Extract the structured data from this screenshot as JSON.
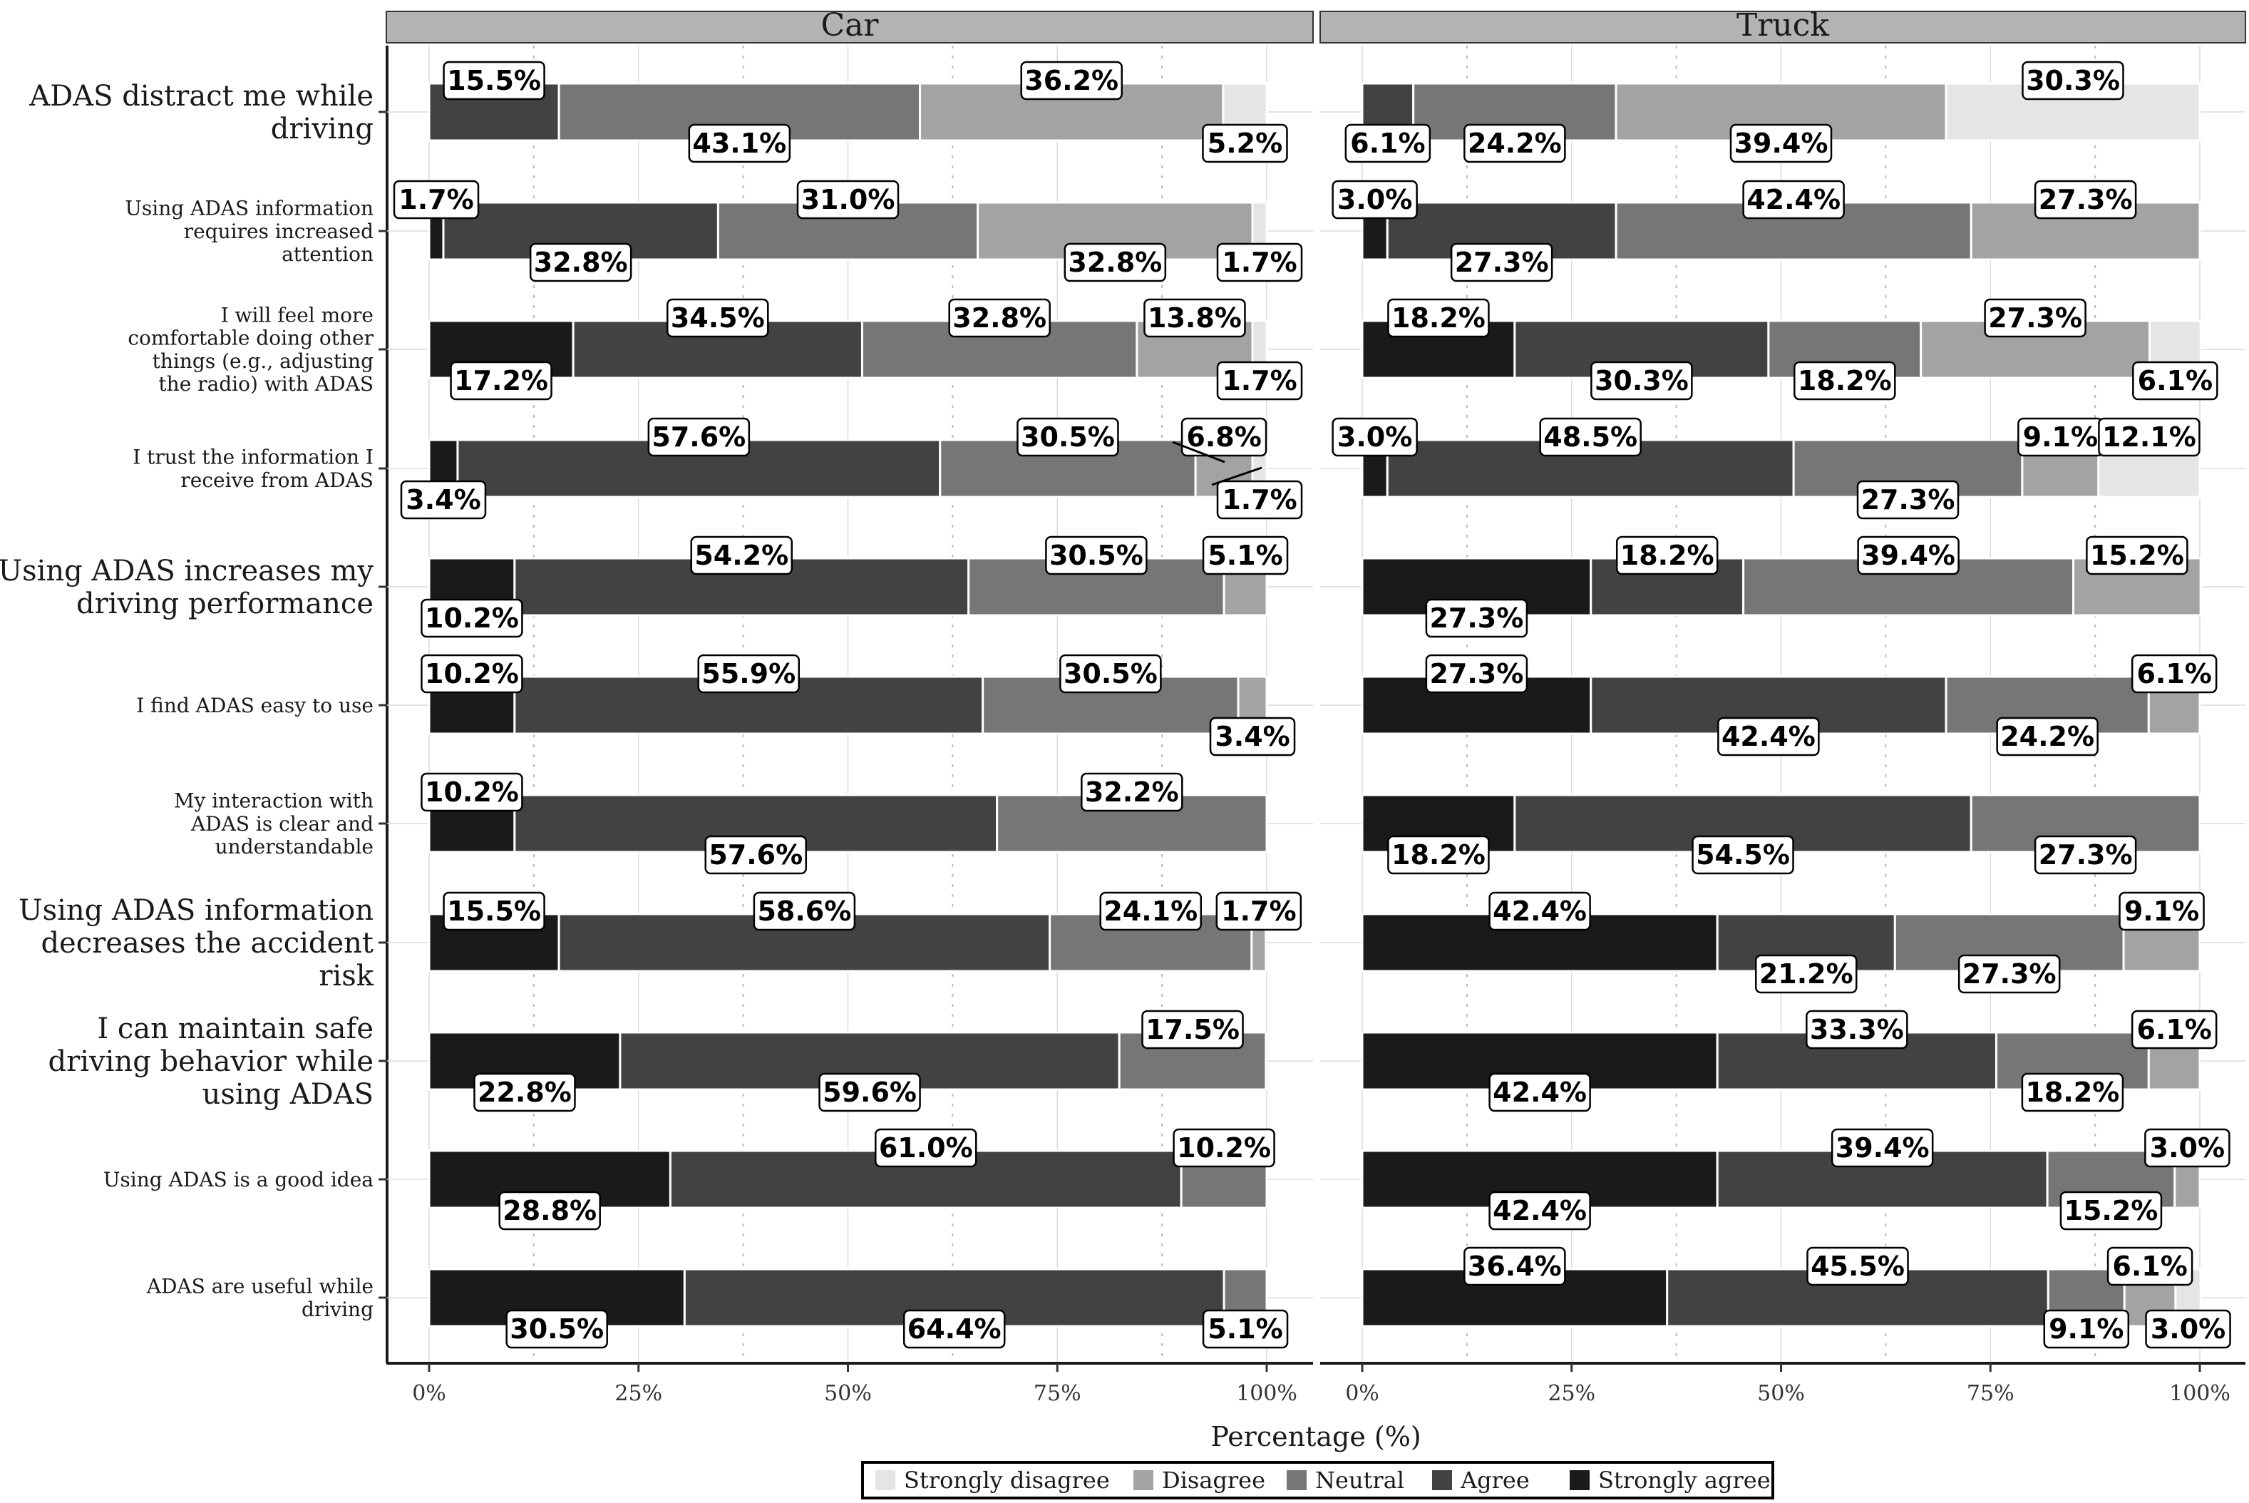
{
  "chart_data": {
    "type": "bar",
    "orientation": "horizontal-stacked",
    "xlabel": "Percentage (%)",
    "x_ticks": [
      "0%",
      "25%",
      "50%",
      "75%",
      "100%"
    ],
    "xlim": [
      0,
      100
    ],
    "levels": [
      "Strongly agree",
      "Agree",
      "Neutral",
      "Disagree",
      "Strongly disagree"
    ],
    "legend": {
      "position": "bottom",
      "entries": [
        {
          "label": "Strongly disagree",
          "color": "#e5e5e5"
        },
        {
          "label": "Disagree",
          "color": "#a3a3a3"
        },
        {
          "label": "Neutral",
          "color": "#767676"
        },
        {
          "label": "Agree",
          "color": "#424242"
        },
        {
          "label": "Strongly agree",
          "color": "#1a1a1a"
        }
      ]
    },
    "categories": [
      "ADAS distract me while driving",
      "Using ADAS information requires increased attention",
      "I will feel more comfortable doing other things (e.g., adjusting the radio) with ADAS",
      "I trust the information I receive from ADAS",
      "Using ADAS increases my driving performance",
      "I find ADAS easy to use",
      "My interaction with ADAS is clear and understandable",
      "Using ADAS information decreases the accident risk",
      "I can maintain safe driving behavior while using ADAS",
      "Using ADAS is a good idea",
      "ADAS are useful while driving"
    ],
    "panels": [
      {
        "name": "Car",
        "rows": [
          [
            0,
            15.5,
            43.1,
            36.2,
            5.2
          ],
          [
            1.7,
            32.8,
            31.0,
            32.8,
            1.7
          ],
          [
            17.2,
            34.5,
            32.8,
            13.8,
            1.7
          ],
          [
            3.4,
            57.6,
            30.5,
            6.8,
            1.7
          ],
          [
            10.2,
            54.2,
            30.5,
            5.1,
            0
          ],
          [
            10.2,
            55.9,
            30.5,
            3.4,
            0
          ],
          [
            10.2,
            57.6,
            32.2,
            0,
            0
          ],
          [
            15.5,
            58.6,
            24.1,
            1.7,
            0
          ],
          [
            22.8,
            59.6,
            17.5,
            0,
            0
          ],
          [
            28.8,
            61.0,
            10.2,
            0,
            0
          ],
          [
            30.5,
            64.4,
            5.1,
            0,
            0
          ]
        ]
      },
      {
        "name": "Truck",
        "rows": [
          [
            0,
            6.1,
            24.2,
            39.4,
            30.3
          ],
          [
            3.0,
            27.3,
            42.4,
            27.3,
            0
          ],
          [
            18.2,
            30.3,
            18.2,
            27.3,
            6.1
          ],
          [
            3.0,
            48.5,
            27.3,
            9.1,
            12.1
          ],
          [
            27.3,
            18.2,
            39.4,
            15.2,
            0
          ],
          [
            27.3,
            42.4,
            24.2,
            6.1,
            0
          ],
          [
            18.2,
            54.5,
            27.3,
            0,
            0
          ],
          [
            42.4,
            21.2,
            27.3,
            9.1,
            0
          ],
          [
            42.4,
            33.3,
            18.2,
            6.1,
            0
          ],
          [
            42.4,
            39.4,
            15.2,
            3.0,
            0
          ],
          [
            36.4,
            45.5,
            9.1,
            6.1,
            3.0
          ]
        ]
      }
    ]
  }
}
